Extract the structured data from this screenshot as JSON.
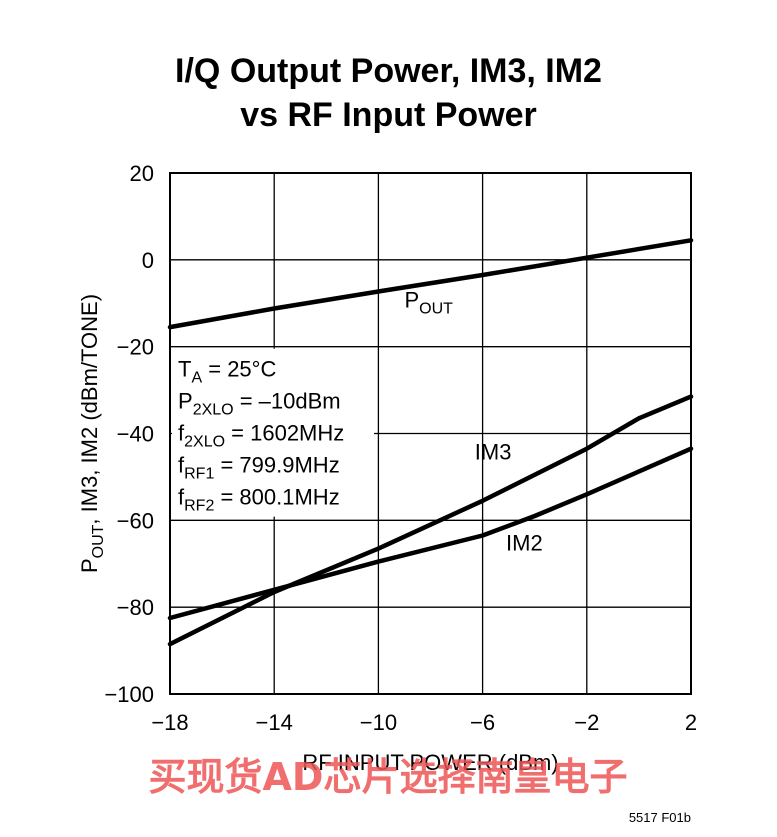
{
  "chart_data": {
    "type": "line",
    "title_line1": "I/Q Output Power, IM3, IM2",
    "title_line2": "vs RF Input Power",
    "xlabel": "RF INPUT POWER (dBm)",
    "ylabel_parts": [
      "P",
      "OUT",
      ", IM3, IM2 (dBm/TONE)"
    ],
    "xlim": [
      -18,
      2
    ],
    "ylim": [
      -100,
      20
    ],
    "xticks": [
      -18,
      -14,
      -10,
      -6,
      -2,
      2
    ],
    "xtick_labels": [
      "−18",
      "−14",
      "−10",
      "−6",
      "−2",
      "2"
    ],
    "yticks": [
      20,
      0,
      -20,
      -40,
      -60,
      -80,
      -100
    ],
    "ytick_labels": [
      "20",
      "0",
      "−20",
      "−40",
      "−60",
      "−80",
      "−100"
    ],
    "grid": true,
    "series": [
      {
        "name": "POUT",
        "label_main": "P",
        "label_sub": "OUT",
        "label_at": [
          -9,
          -11
        ],
        "x": [
          -18,
          -14,
          -10,
          -6,
          -2,
          2
        ],
        "y": [
          -15.5,
          -11.2,
          -7.3,
          -3.5,
          0.5,
          4.5
        ]
      },
      {
        "name": "IM3",
        "label_main": "IM3",
        "label_sub": "",
        "label_at": [
          -6.3,
          -46
        ],
        "x": [
          -18,
          -14,
          -10,
          -6,
          -2,
          0,
          2
        ],
        "y": [
          -88.5,
          -76.5,
          -66.5,
          -55.5,
          -43.5,
          -36.5,
          -31.5
        ]
      },
      {
        "name": "IM2",
        "label_main": "IM2",
        "label_sub": "",
        "label_at": [
          -5.1,
          -67
        ],
        "x": [
          -18,
          -14,
          -10,
          -6,
          -4,
          -2,
          2
        ],
        "y": [
          -82.5,
          -76,
          -69.5,
          -63.5,
          -59,
          -54,
          -43.5
        ]
      }
    ],
    "annotations": [
      {
        "main": "T",
        "sub": "A",
        "rest": " = 25°C"
      },
      {
        "main": "P",
        "sub": "2XLO",
        "rest": " = –10dBm"
      },
      {
        "main": "f",
        "sub": "2XLO",
        "rest": " = 1602MHz"
      },
      {
        "main": "f",
        "sub": "RF1",
        "rest": " = 799.9MHz"
      },
      {
        "main": "f",
        "sub": "RF2",
        "rest": " = 800.1MHz"
      }
    ],
    "figure_code": "5517 F01b"
  },
  "watermark": "买现货AD芯片选择南皇电子",
  "colors": {
    "line": "#000000",
    "grid": "#000000",
    "watermark": "#ee5555"
  }
}
